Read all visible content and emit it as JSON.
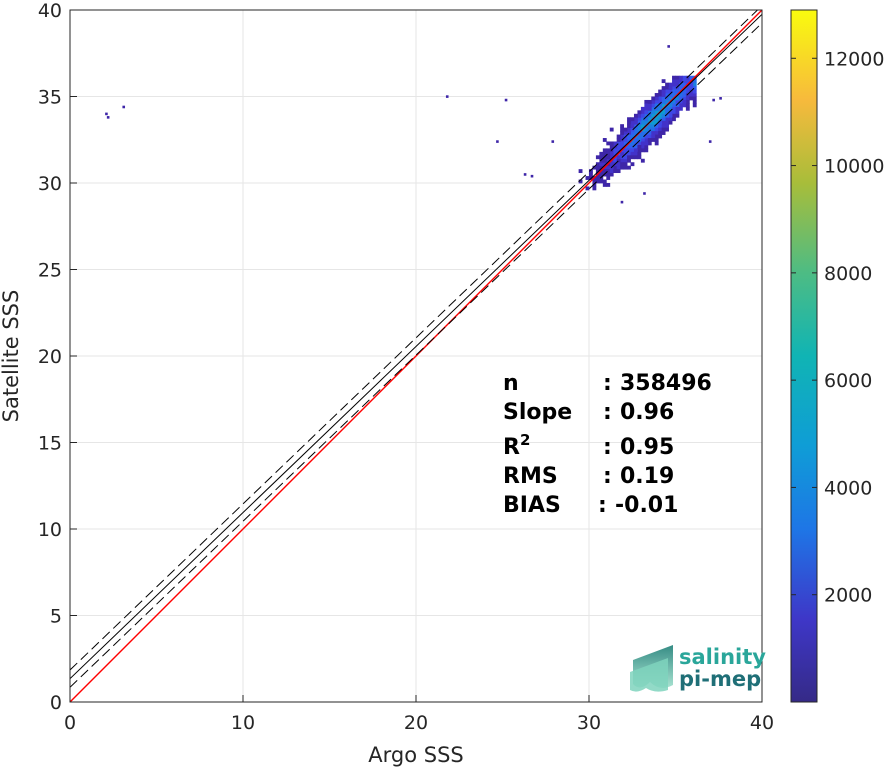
{
  "chart_data": {
    "type": "heatmap",
    "title": "",
    "xlabel": "Argo SSS",
    "ylabel": "Satellite SSS",
    "xlim": [
      0,
      40
    ],
    "ylim": [
      0,
      40
    ],
    "x_ticks": [
      0,
      10,
      20,
      30,
      40
    ],
    "y_ticks": [
      0,
      5,
      10,
      15,
      20,
      25,
      30,
      35,
      40
    ],
    "grid": true,
    "colorbar": {
      "range": [
        0,
        12900
      ],
      "ticks": [
        2000,
        4000,
        6000,
        8000,
        10000,
        12000
      ],
      "tick_labels": [
        "2000",
        "4000",
        "6000",
        "8000",
        "10000",
        "12000"
      ],
      "colormap": "parula"
    },
    "reference_lines": [
      {
        "kind": "identity",
        "slope": 1.0,
        "intercept": 0.0,
        "color": "#ff0000",
        "style": "solid"
      },
      {
        "kind": "fit",
        "slope": 0.96,
        "intercept": 1.35,
        "color": "#000000",
        "style": "solid"
      },
      {
        "kind": "fit-upper",
        "slope": 0.96,
        "intercept": 1.85,
        "color": "#000000",
        "style": "dashed"
      },
      {
        "kind": "fit-lower",
        "slope": 0.96,
        "intercept": 0.85,
        "color": "#000000",
        "style": "dashed"
      }
    ],
    "density_cluster": {
      "x_range": [
        28,
        36
      ],
      "y_range": [
        30,
        36
      ],
      "peak_count": 2000
    },
    "outliers": [
      {
        "x": 2.1,
        "y": 34.0
      },
      {
        "x": 2.2,
        "y": 33.8
      },
      {
        "x": 3.1,
        "y": 34.4
      },
      {
        "x": 21.8,
        "y": 35.0
      },
      {
        "x": 25.2,
        "y": 34.8
      },
      {
        "x": 24.7,
        "y": 32.4
      },
      {
        "x": 26.3,
        "y": 30.5
      },
      {
        "x": 26.7,
        "y": 30.4
      },
      {
        "x": 27.9,
        "y": 32.4
      },
      {
        "x": 37.2,
        "y": 34.8
      },
      {
        "x": 37.6,
        "y": 34.9
      },
      {
        "x": 37.0,
        "y": 32.4
      },
      {
        "x": 34.6,
        "y": 37.9
      },
      {
        "x": 33.2,
        "y": 29.4
      },
      {
        "x": 31.9,
        "y": 28.9
      }
    ],
    "stats": [
      {
        "label": "n",
        "sep": ":",
        "value": "358496"
      },
      {
        "label": "Slope",
        "sep": ":",
        "value": "0.96"
      },
      {
        "label": "R",
        "sup": "2",
        "sep": ":",
        "value": "0.95"
      },
      {
        "label": "RMS",
        "sep": ":",
        "value": "0.19"
      },
      {
        "label": "BIAS",
        "sep": ":",
        "value": "-0.01"
      }
    ]
  },
  "logo": {
    "line1": "salinity",
    "line2": "pi-mep",
    "colors": {
      "text1": "#2aa69a",
      "text2": "#1f6f77"
    }
  }
}
